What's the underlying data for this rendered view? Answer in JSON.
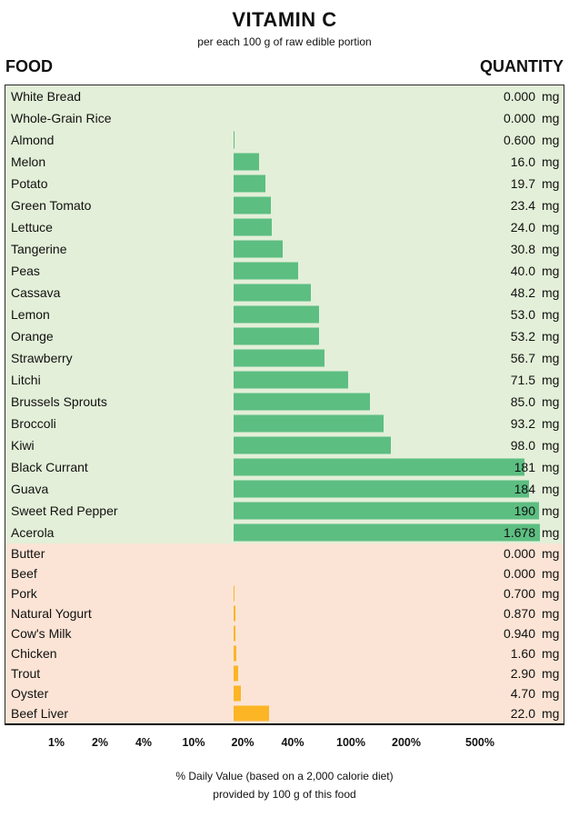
{
  "header": {
    "title": "VITAMIN C",
    "subtitle": "per each 100 g of raw edible portion",
    "food_column": "FOOD",
    "quantity_column": "QUANTITY"
  },
  "footer": {
    "line1": "% Daily Value (based on a 2,000 calorie diet)",
    "line2": "provided by 100 g of this food"
  },
  "colors": {
    "plant_bar": "#5dbe82",
    "plant_background": "#e3efd8",
    "animal_bar": "#fcb525",
    "animal_background": "#fbe4d5"
  },
  "chart_data": {
    "type": "bar",
    "orientation": "horizontal",
    "title": "VITAMIN C",
    "subtitle": "per each 100 g of raw edible portion",
    "unit": "mg",
    "value_scale": "linear (bars), labeled with % daily value ticks",
    "xlabel": "% Daily Value (based on a 2,000 calorie diet) provided by 100 g of this food",
    "axis_tick_labels": [
      "1%",
      "2%",
      "4%",
      "10%",
      "20%",
      "40%",
      "100%",
      "200%",
      "500%"
    ],
    "series": [
      {
        "name": "plant foods",
        "items": [
          {
            "label": "White Bread",
            "value_mg": 0,
            "display": "0.000"
          },
          {
            "label": "Whole-Grain Rice",
            "value_mg": 0,
            "display": "0.000"
          },
          {
            "label": "Almond",
            "value_mg": 0.6,
            "display": "0.600"
          },
          {
            "label": "Melon",
            "value_mg": 16,
            "display": "16.0"
          },
          {
            "label": "Potato",
            "value_mg": 19.7,
            "display": "19.7"
          },
          {
            "label": "Green Tomato",
            "value_mg": 23.4,
            "display": "23.4"
          },
          {
            "label": "Lettuce",
            "value_mg": 24,
            "display": "24.0"
          },
          {
            "label": "Tangerine",
            "value_mg": 30.8,
            "display": "30.8"
          },
          {
            "label": "Peas",
            "value_mg": 40,
            "display": "40.0"
          },
          {
            "label": "Cassava",
            "value_mg": 48.2,
            "display": "48.2"
          },
          {
            "label": "Lemon",
            "value_mg": 53,
            "display": "53.0"
          },
          {
            "label": "Orange",
            "value_mg": 53.2,
            "display": "53.2"
          },
          {
            "label": "Strawberry",
            "value_mg": 56.7,
            "display": "56.7"
          },
          {
            "label": "Litchi",
            "value_mg": 71.5,
            "display": "71.5"
          },
          {
            "label": "Brussels Sprouts",
            "value_mg": 85,
            "display": "85.0"
          },
          {
            "label": "Broccoli",
            "value_mg": 93.2,
            "display": "93.2"
          },
          {
            "label": "Kiwi",
            "value_mg": 98,
            "display": "98.0"
          },
          {
            "label": "Black Currant",
            "value_mg": 181,
            "display": "181"
          },
          {
            "label": "Guava",
            "value_mg": 184,
            "display": "184"
          },
          {
            "label": "Sweet Red Pepper",
            "value_mg": 190,
            "display": "190"
          },
          {
            "label": "Acerola",
            "value_mg": 1678,
            "display": "1.678"
          }
        ]
      },
      {
        "name": "animal foods",
        "items": [
          {
            "label": "Butter",
            "value_mg": 0,
            "display": "0.000"
          },
          {
            "label": "Beef",
            "value_mg": 0,
            "display": "0.000"
          },
          {
            "label": "Pork",
            "value_mg": 0.7,
            "display": "0.700"
          },
          {
            "label": "Natural Yogurt",
            "value_mg": 0.87,
            "display": "0.870"
          },
          {
            "label": "Cow's Milk",
            "value_mg": 0.94,
            "display": "0.940"
          },
          {
            "label": "Chicken",
            "value_mg": 1.6,
            "display": "1.60"
          },
          {
            "label": "Trout",
            "value_mg": 2.9,
            "display": "2.90"
          },
          {
            "label": "Oyster",
            "value_mg": 4.7,
            "display": "4.70"
          },
          {
            "label": "Beef Liver",
            "value_mg": 22,
            "display": "22.0"
          }
        ]
      }
    ]
  }
}
